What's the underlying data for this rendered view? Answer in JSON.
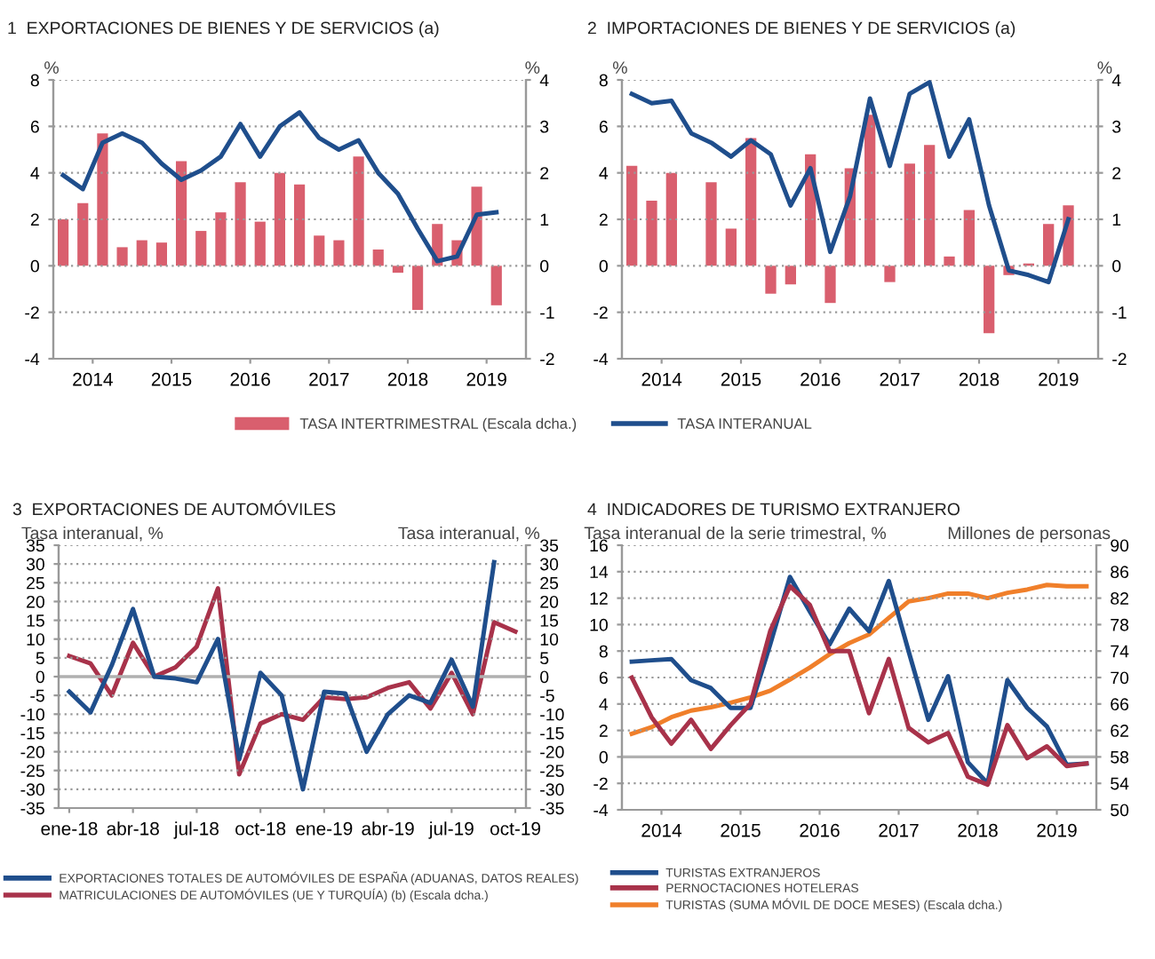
{
  "chart_data": [
    {
      "type": "bar",
      "title": "1  EXPORTACIONES DE BIENES Y DE SERVICIOS (a)",
      "ylabel": "%",
      "y2label": "%",
      "x": [
        2014.125,
        2014.375,
        2014.625,
        2014.875,
        2015.125,
        2015.375,
        2015.625,
        2015.875,
        2016.125,
        2016.375,
        2016.625,
        2016.875,
        2017.125,
        2017.375,
        2017.625,
        2017.875,
        2018.125,
        2018.375,
        2018.625,
        2018.875,
        2019.125,
        2019.375,
        2019.625
      ],
      "xlim": [
        2014,
        2020
      ],
      "xticks": [
        {
          "value": 2014.5,
          "label": "2014"
        },
        {
          "value": 2015.5,
          "label": "2015"
        },
        {
          "value": 2016.5,
          "label": "2016"
        },
        {
          "value": 2017.5,
          "label": "2017"
        },
        {
          "value": 2018.5,
          "label": "2018"
        },
        {
          "value": 2019.5,
          "label": "2019"
        }
      ],
      "ylim": [
        -4,
        8
      ],
      "yticks": [
        -4,
        -2,
        0,
        2,
        4,
        6,
        8
      ],
      "y2lim": [
        -2,
        4
      ],
      "y2ticks": [
        -2,
        -1,
        0,
        1,
        2,
        3,
        4
      ],
      "grid": "y",
      "legend": "bottom right",
      "series": [
        {
          "name": "TASA INTERTRIMESTRAL (Escala dcha.)",
          "type": "bar",
          "axis": "y2",
          "color": "#d95f6e",
          "values": [
            1.0,
            1.35,
            2.85,
            0.4,
            0.55,
            0.5,
            2.25,
            0.75,
            1.15,
            1.8,
            0.95,
            2.0,
            1.75,
            0.65,
            0.55,
            2.35,
            0.35,
            -0.15,
            -0.95,
            0.9,
            0.55,
            1.7,
            -0.85
          ]
        },
        {
          "type": "line",
          "color": "#1f4e8c",
          "values": [
            3.9,
            3.3,
            5.3,
            5.7,
            5.3,
            4.4,
            3.7,
            4.1,
            4.7,
            6.1,
            4.7,
            6.0,
            6.6,
            5.5,
            5.0,
            5.4,
            4.0,
            3.1,
            1.6,
            0.2,
            0.4,
            2.2,
            2.3
          ]
        }
      ]
    },
    {
      "type": "bar",
      "title": "2  IMPORTACIONES DE BIENES Y DE SERVICIOS (a)",
      "ylabel": "%",
      "y2label": "%",
      "x": [
        2014.125,
        2014.375,
        2014.625,
        2014.875,
        2015.125,
        2015.375,
        2015.625,
        2015.875,
        2016.125,
        2016.375,
        2016.625,
        2016.875,
        2017.125,
        2017.375,
        2017.625,
        2017.875,
        2018.125,
        2018.375,
        2018.625,
        2018.875,
        2019.125,
        2019.375,
        2019.625
      ],
      "xlim": [
        2014,
        2020
      ],
      "xticks": [
        {
          "value": 2014.5,
          "label": "2014"
        },
        {
          "value": 2015.5,
          "label": "2015"
        },
        {
          "value": 2016.5,
          "label": "2016"
        },
        {
          "value": 2017.5,
          "label": "2017"
        },
        {
          "value": 2018.5,
          "label": "2018"
        },
        {
          "value": 2019.5,
          "label": "2019"
        }
      ],
      "ylim": [
        -4,
        8
      ],
      "yticks": [
        -4,
        -2,
        0,
        2,
        4,
        6,
        8
      ],
      "y2lim": [
        -2,
        4
      ],
      "y2ticks": [
        -2,
        -1,
        0,
        1,
        2,
        3,
        4
      ],
      "grid": "y",
      "legend": "bottom left",
      "series": [
        {
          "type": "bar",
          "axis": "y2",
          "color": "#d95f6e",
          "values": [
            2.15,
            1.4,
            2.0,
            0.0,
            1.8,
            0.8,
            2.75,
            -0.6,
            -0.4,
            2.4,
            -0.8,
            2.1,
            3.25,
            -0.35,
            2.2,
            2.6,
            0.2,
            1.2,
            -1.45,
            -0.2,
            0.05,
            0.9,
            1.3
          ]
        },
        {
          "name": "TASA INTERANUAL",
          "type": "line",
          "color": "#1f4e8c",
          "values": [
            7.4,
            7.0,
            7.1,
            5.7,
            5.3,
            4.7,
            5.4,
            4.8,
            2.6,
            4.2,
            0.6,
            3.0,
            7.2,
            4.3,
            7.4,
            7.9,
            4.7,
            6.3,
            2.6,
            -0.2,
            -0.4,
            -0.7,
            2.0
          ]
        }
      ]
    },
    {
      "type": "line",
      "title": "3  EXPORTACIONES DE AUTOMÓVILES",
      "ylabel": "Tasa interanual, %",
      "y2label": "Tasa interanual, %",
      "categories": [
        "ene-18",
        null,
        null,
        "abr-18",
        null,
        null,
        "jul-18",
        null,
        null,
        "oct-18",
        null,
        null,
        "ene-19",
        null,
        null,
        "abr-19",
        null,
        null,
        "jul-19",
        null,
        null,
        "oct-19"
      ],
      "ylim": [
        -35,
        35
      ],
      "yticks": [
        -35,
        -30,
        -25,
        -20,
        -15,
        -10,
        -5,
        0,
        5,
        10,
        15,
        20,
        25,
        30,
        35
      ],
      "y2lim": [
        -35,
        35
      ],
      "y2ticks": [
        -35,
        -30,
        -25,
        -20,
        -15,
        -10,
        -5,
        0,
        5,
        10,
        15,
        20,
        25,
        30,
        35
      ],
      "grid": "y",
      "legend": "bottom",
      "ref_lines": [
        {
          "axis": "y",
          "value": 0,
          "color": "#b0b0b0"
        }
      ],
      "series": [
        {
          "name": "EXPORTACIONES TOTALES DE AUTOMÓVILES DE ESPAÑA (ADUANAS, DATOS REALES)",
          "color": "#1f4e8c",
          "values": [
            -4,
            -9.5,
            3,
            18,
            0,
            -0.5,
            -1.5,
            10,
            -22,
            1,
            -5,
            -30,
            -4,
            -4.5,
            -20,
            -10,
            -5,
            -7,
            4.5,
            -8,
            30.5,
            null
          ]
        },
        {
          "name": "MATRICULACIONES DE AUTOMÓVILES (UE Y TURQUÍA) (b) (Escala dcha.)",
          "axis": "y2",
          "color": "#a8324a",
          "values": [
            5.5,
            3.5,
            -5,
            9,
            0,
            2.5,
            8,
            23.5,
            -26,
            -12.5,
            -10,
            -11.5,
            -5.5,
            -6,
            -5.5,
            -3,
            -1.5,
            -8.5,
            1,
            -10,
            14.5,
            12
          ]
        }
      ]
    },
    {
      "type": "line",
      "title": "4  INDICADORES DE TURISMO EXTRANJERO",
      "ylabel": "Tasa interanual de la serie trimestral, %",
      "y2label": "Millones de personas",
      "x": [
        2014.125,
        2014.375,
        2014.625,
        2014.875,
        2015.125,
        2015.375,
        2015.625,
        2015.875,
        2016.125,
        2016.375,
        2016.625,
        2016.875,
        2017.125,
        2017.375,
        2017.625,
        2017.875,
        2018.125,
        2018.375,
        2018.625,
        2018.875,
        2019.125,
        2019.375,
        2019.625,
        2019.875
      ],
      "xlim": [
        2014,
        2020
      ],
      "xticks": [
        {
          "value": 2014.5,
          "label": "2014"
        },
        {
          "value": 2015.5,
          "label": "2015"
        },
        {
          "value": 2016.5,
          "label": "2016"
        },
        {
          "value": 2017.5,
          "label": "2017"
        },
        {
          "value": 2018.5,
          "label": "2018"
        },
        {
          "value": 2019.5,
          "label": "2019"
        }
      ],
      "ylim": [
        -4,
        16
      ],
      "yticks": [
        -4,
        -2,
        0,
        2,
        4,
        6,
        8,
        10,
        12,
        14,
        16
      ],
      "y2lim": [
        50,
        90
      ],
      "y2ticks": [
        50,
        54,
        58,
        62,
        66,
        70,
        74,
        78,
        82,
        86,
        90
      ],
      "grid": "y",
      "legend": "bottom left",
      "ref_lines": [
        {
          "axis": "y",
          "value": 0,
          "color": "#b0b0b0"
        }
      ],
      "series": [
        {
          "name": "TURISTAS EXTRANJEROS",
          "color": "#1f4e8c",
          "values": [
            7.2,
            7.3,
            7.4,
            5.8,
            5.2,
            3.7,
            3.7,
            8.5,
            13.6,
            11.0,
            8.5,
            11.2,
            9.5,
            13.3,
            8.0,
            2.8,
            6.1,
            -0.4,
            -2.0,
            5.8,
            3.7,
            2.3,
            -0.6,
            -0.5
          ]
        },
        {
          "name": "PERNOCTACIONES HOTELERAS",
          "color": "#a8324a",
          "values": [
            6.0,
            3.0,
            1.0,
            2.8,
            0.6,
            2.4,
            4.0,
            9.5,
            12.9,
            11.5,
            8.0,
            8.0,
            3.3,
            7.4,
            2.2,
            1.1,
            1.8,
            -1.5,
            -2.1,
            2.4,
            -0.1,
            0.8,
            -0.7,
            -0.5
          ]
        },
        {
          "name": "TURISTAS (SUMA MÓVIL DE DOCE MESES) (Escala dcha.)",
          "axis": "y2",
          "color": "#f07f2a",
          "values": [
            61.5,
            62.5,
            64,
            65,
            65.5,
            66.2,
            67,
            68,
            69.7,
            71.5,
            73.5,
            75.2,
            76.5,
            79,
            81.5,
            82,
            82.7,
            82.7,
            82,
            82.8,
            83.3,
            84,
            83.8,
            83.8
          ]
        }
      ]
    }
  ]
}
